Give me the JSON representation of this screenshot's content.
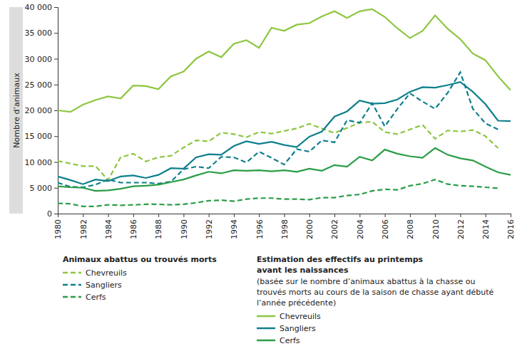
{
  "chart_data": {
    "type": "line",
    "y_label": "Nombre d’animaux",
    "x": [
      1980,
      1981,
      1982,
      1983,
      1984,
      1985,
      1986,
      1987,
      1988,
      1989,
      1990,
      1991,
      1992,
      1993,
      1994,
      1995,
      1996,
      1997,
      1998,
      1999,
      2000,
      2001,
      2002,
      2003,
      2004,
      2005,
      2006,
      2007,
      2008,
      2009,
      2010,
      2011,
      2012,
      2013,
      2014,
      2015,
      2016
    ],
    "xlim": [
      1980,
      2016
    ],
    "xticks": [
      1980,
      1982,
      1984,
      1986,
      1988,
      1990,
      1992,
      1994,
      1996,
      1998,
      2000,
      2002,
      2004,
      2006,
      2008,
      2010,
      2012,
      2014,
      2016
    ],
    "ylim": [
      0,
      40000
    ],
    "yticks": [
      {
        "value": 0,
        "label": "0"
      },
      {
        "value": 5000,
        "label": "5 000"
      },
      {
        "value": 10000,
        "label": "10 000"
      },
      {
        "value": 15000,
        "label": "15 000"
      },
      {
        "value": 20000,
        "label": "20 000"
      },
      {
        "value": 25000,
        "label": "25 000"
      },
      {
        "value": 30000,
        "label": "30 000"
      },
      {
        "value": 35000,
        "label": "35 000"
      },
      {
        "value": 40000,
        "label": "40 000"
      }
    ],
    "grid": false,
    "legend_titles": [
      [
        "Animaux abattus ou trouvés morts"
      ],
      [
        "Estimation des effectifs au printemps",
        "avant les naissances"
      ]
    ],
    "legend_note": [
      "(basée sur le nombre d’animaux abattus à la chasse ou",
      "trouvés morts au cours de la saison de chasse ayant débuté",
      "l’année précédente)"
    ],
    "series": [
      {
        "name": "Chevreuils",
        "color": "#8dc63f",
        "line_style": "dashed",
        "values": [
          10200,
          9700,
          9200,
          9200,
          6500,
          10900,
          11600,
          10100,
          10900,
          11200,
          12800,
          14200,
          14000,
          15700,
          15400,
          14800,
          15800,
          15500,
          16000,
          16500,
          17400,
          16500,
          15600,
          16600,
          17600,
          17800,
          15800,
          15400,
          16300,
          17200,
          14500,
          16100,
          15900,
          16200,
          15000,
          12700,
          null
        ]
      },
      {
        "name": "Sangliers",
        "color": "#0e7f8c",
        "line_style": "dashed",
        "values": [
          6000,
          5200,
          5100,
          5600,
          6600,
          6000,
          6000,
          6000,
          5800,
          6200,
          8600,
          9100,
          8800,
          11000,
          10900,
          9900,
          12000,
          10800,
          9500,
          12500,
          12000,
          14200,
          13800,
          18100,
          17600,
          21400,
          16900,
          20300,
          23300,
          21700,
          20300,
          23400,
          27400,
          20300,
          17500,
          16300,
          null
        ]
      },
      {
        "name": "Cerfs",
        "color": "#2a9d46",
        "line_style": "dashed",
        "values": [
          2000,
          1900,
          1400,
          1400,
          1700,
          1600,
          1700,
          1800,
          1800,
          1700,
          1800,
          2100,
          2500,
          2600,
          2400,
          2800,
          3000,
          3000,
          2800,
          2800,
          2700,
          3100,
          3100,
          3500,
          3700,
          4400,
          4700,
          4600,
          5400,
          5800,
          6600,
          5700,
          5400,
          5300,
          5100,
          4900,
          null
        ]
      },
      {
        "name": "Chevreuils",
        "color": "#8dc63f",
        "line_style": "solid",
        "values": [
          20000,
          19700,
          21100,
          22000,
          22700,
          22300,
          24800,
          24700,
          24100,
          26600,
          27500,
          30000,
          31400,
          30300,
          32900,
          33600,
          32100,
          36000,
          35400,
          36600,
          36900,
          38200,
          39200,
          37900,
          39200,
          39600,
          38100,
          35900,
          34000,
          35400,
          38400,
          35800,
          33800,
          31000,
          29700,
          26600,
          23900
        ]
      },
      {
        "name": "Sangliers",
        "color": "#0e7f8c",
        "line_style": "solid",
        "values": [
          7200,
          6500,
          5700,
          6600,
          6300,
          7200,
          7400,
          6900,
          7500,
          8800,
          8700,
          10900,
          11500,
          11400,
          13100,
          14000,
          13500,
          13900,
          13300,
          12900,
          14900,
          15900,
          18800,
          19800,
          21900,
          21300,
          21400,
          22100,
          23600,
          24500,
          24400,
          24900,
          25500,
          23600,
          21200,
          18000,
          17900
        ]
      },
      {
        "name": "Cerfs",
        "color": "#2a9d46",
        "line_style": "solid",
        "values": [
          5300,
          5100,
          5000,
          4400,
          4500,
          4800,
          5300,
          5400,
          5600,
          6100,
          6600,
          7400,
          8100,
          7800,
          8400,
          8300,
          8400,
          8200,
          8400,
          8100,
          8700,
          8300,
          9400,
          9100,
          11000,
          10300,
          12400,
          11600,
          11100,
          10800,
          12700,
          11400,
          10700,
          10300,
          9100,
          8000,
          7500
        ]
      }
    ]
  }
}
